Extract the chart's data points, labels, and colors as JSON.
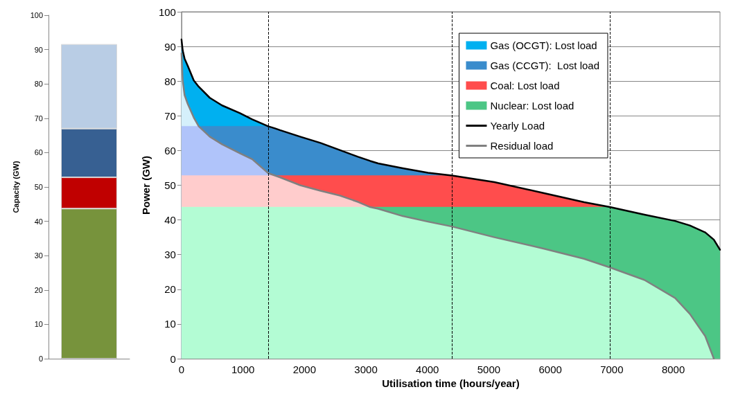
{
  "chart_data": [
    {
      "type": "bar",
      "stacked": true,
      "categories": [
        null
      ],
      "ylabel": "Capacity (GW)",
      "ylim": [
        0,
        100
      ],
      "yticks": [
        0,
        10,
        20,
        30,
        40,
        50,
        60,
        70,
        80,
        90,
        100
      ],
      "grid": false,
      "series": [
        {
          "color": "#77933c",
          "values": [
            43.7
          ]
        },
        {
          "color": "#c00000",
          "values": [
            9.1
          ]
        },
        {
          "color": "#376092",
          "values": [
            14.2
          ]
        },
        {
          "color": "#b9cde5",
          "values": [
            24.6
          ]
        }
      ]
    },
    {
      "type": "area",
      "xlabel": "Utilisation time (hours/year)",
      "ylabel": "Power (GW)",
      "xlim": [
        0,
        8760
      ],
      "xticks": [
        0,
        1000,
        2000,
        3000,
        4000,
        5000,
        6000,
        7000,
        8000
      ],
      "ylim": [
        0,
        100
      ],
      "yticks": [
        0,
        10,
        20,
        30,
        40,
        50,
        60,
        70,
        80,
        90,
        100
      ],
      "grid": "y",
      "legend": "top right",
      "marker": "none",
      "ref_lines": [
        {
          "axis": "x",
          "value": 1410,
          "color": "#000000",
          "line_style": "dashed"
        },
        {
          "axis": "x",
          "value": 4400,
          "color": "#000000",
          "line_style": "dashed"
        },
        {
          "axis": "x",
          "value": 6970,
          "color": "#000000",
          "line_style": "dashed"
        }
      ],
      "series": [
        {
          "type": "area",
          "name": "Gas (OCGT): Lost load",
          "color": "#00b0f0",
          "x": [
            0,
            20,
            50,
            100,
            200,
            280,
            460,
            660,
            950,
            1150,
            1410
          ],
          "values": [
            92,
            88.8,
            86.5,
            84.5,
            80.2,
            78.4,
            75.2,
            73,
            70.8,
            69,
            67
          ]
        },
        {
          "type": "area",
          "name": "Gas (CCGT):  Lost load",
          "color": "#3a8ccc",
          "x": [
            280,
            460,
            660,
            950,
            1150,
            1410,
            1520,
            1600,
            1930,
            2260,
            2580,
            2870,
            3070,
            3200,
            3600,
            4010,
            4400
          ],
          "values": [
            67,
            67,
            67,
            67,
            67,
            67,
            66.4,
            65.9,
            64,
            62.2,
            60.1,
            58.2,
            57,
            56.3,
            54.9,
            53.6,
            52.8
          ]
        },
        {
          "type": "area",
          "name": "Coal: Lost load",
          "color": "#ff4d4d",
          "x": [
            1520,
            1600,
            1930,
            2260,
            2580,
            2870,
            3070,
            3200,
            3600,
            4010,
            4400,
            5090,
            5900,
            6550,
            6970
          ],
          "values": [
            52.8,
            52.8,
            52.8,
            52.8,
            52.8,
            52.8,
            52.8,
            52.8,
            52.8,
            52.8,
            52.8,
            50.9,
            47.7,
            45.1,
            43.7
          ]
        },
        {
          "type": "area",
          "name": "Nuclear: Lost load",
          "color": "#4cc685",
          "x": [
            3070,
            3200,
            3600,
            4010,
            4400,
            5090,
            5900,
            6550,
            6970,
            7530,
            8030,
            8270,
            8520,
            8660,
            8760
          ],
          "values": [
            43.7,
            43.7,
            43.7,
            43.7,
            43.7,
            43.7,
            43.7,
            43.7,
            43.7,
            41.5,
            39.7,
            38.4,
            36.4,
            34.3,
            31.4
          ]
        },
        {
          "type": "area",
          "color": "#d5f0fb",
          "x": [
            0,
            20,
            50,
            100,
            200,
            280
          ],
          "values": [
            88,
            80,
            76,
            73.5,
            69.5,
            67
          ]
        },
        {
          "type": "area",
          "color": "#b0c4fa",
          "x": [
            0,
            280,
            460,
            660,
            950,
            1150,
            1410,
            1520
          ],
          "values": [
            67,
            67,
            64,
            61.8,
            59.2,
            57.5,
            53.5,
            52.8
          ]
        },
        {
          "type": "area",
          "color": "#ffcccc",
          "x": [
            0,
            1520,
            1600,
            1930,
            2260,
            2580,
            2870,
            3070
          ],
          "values": [
            52.8,
            52.8,
            52.3,
            50,
            48.4,
            47,
            45.2,
            43.7
          ]
        },
        {
          "type": "area",
          "color": "#b3fcd4",
          "x": [
            0,
            3070,
            3200,
            3600,
            4010,
            4400,
            5090,
            5900,
            6550,
            6970,
            7530,
            8030,
            8270,
            8520,
            8660,
            8760
          ],
          "values": [
            43.7,
            43.7,
            43.2,
            41.1,
            39.5,
            38.1,
            35,
            31.7,
            28.8,
            26.3,
            22.7,
            17.5,
            12.9,
            6.5,
            0,
            0
          ]
        },
        {
          "type": "line",
          "name": "Yearly Load",
          "color": "#000000",
          "x": [
            0,
            20,
            50,
            100,
            200,
            280,
            460,
            660,
            950,
            1150,
            1410,
            1520,
            1600,
            1930,
            2260,
            2580,
            2870,
            3070,
            3200,
            3600,
            4010,
            4400,
            5090,
            5900,
            6550,
            6970,
            7530,
            8030,
            8270,
            8520,
            8660,
            8760
          ],
          "values": [
            92,
            88.8,
            86.5,
            84.5,
            80.2,
            78.4,
            75.2,
            73,
            70.8,
            69,
            67,
            66.4,
            65.9,
            64,
            62.2,
            60.1,
            58.2,
            57,
            56.3,
            54.9,
            53.6,
            52.8,
            50.9,
            47.7,
            45.1,
            43.7,
            41.5,
            39.7,
            38.4,
            36.4,
            34.3,
            31.4
          ]
        },
        {
          "type": "line",
          "name": "Residual load",
          "color": "#808080",
          "x": [
            0,
            20,
            50,
            100,
            200,
            280,
            460,
            660,
            950,
            1150,
            1410,
            1520,
            1600,
            1930,
            2260,
            2580,
            2870,
            3070,
            3200,
            3600,
            4010,
            4400,
            5090,
            5900,
            6550,
            6970,
            7530,
            8030,
            8270,
            8520,
            8660
          ],
          "values": [
            88,
            80,
            76,
            73.5,
            69.5,
            67,
            64,
            61.8,
            59.2,
            57.5,
            53.5,
            52.8,
            52.3,
            50,
            48.4,
            47,
            45.2,
            43.7,
            43.2,
            41.1,
            39.5,
            38.1,
            35,
            31.7,
            28.8,
            26.3,
            22.7,
            17.5,
            12.9,
            6.5,
            0
          ]
        }
      ]
    }
  ]
}
